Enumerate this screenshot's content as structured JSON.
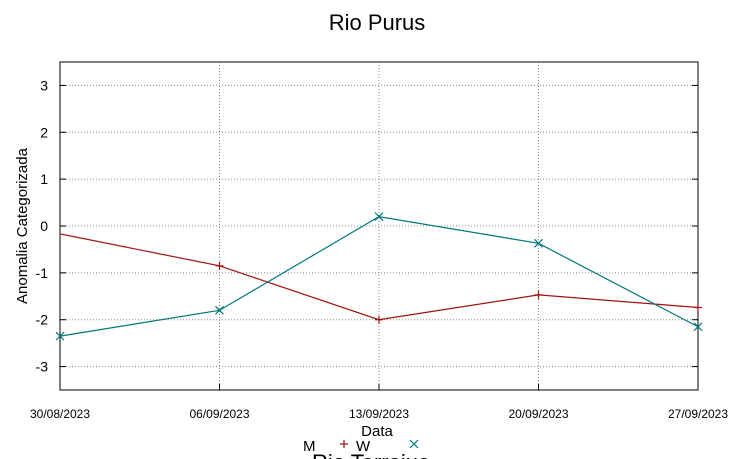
{
  "chart_data": {
    "type": "line",
    "title": "Rio Purus",
    "xlabel": "Data",
    "ylabel": "Anomalia Categorizada",
    "categories": [
      "30/08/2023",
      "06/09/2023",
      "13/09/2023",
      "20/09/2023",
      "27/09/2023"
    ],
    "yticks": [
      "3",
      "2",
      "1",
      "0",
      "-1",
      "-2",
      "-3"
    ],
    "ylim": [
      -3.5,
      3.5
    ],
    "grid": true,
    "legend_placement": "bottom-center",
    "series": [
      {
        "name": "M",
        "color": "#a01010",
        "marker": "plus",
        "x": [
          -0.1,
          1,
          2,
          3,
          4
        ],
        "values": [
          -0.1,
          -0.85,
          -2.0,
          -1.47,
          -1.74
        ]
      },
      {
        "name": "W",
        "color": "#00777c",
        "marker": "cross",
        "x": [
          0,
          1,
          2,
          3,
          4
        ],
        "values": [
          -2.35,
          -1.8,
          0.2,
          -0.37,
          -2.15
        ]
      }
    ],
    "next_chart_title": "Rio Tarrajua"
  }
}
